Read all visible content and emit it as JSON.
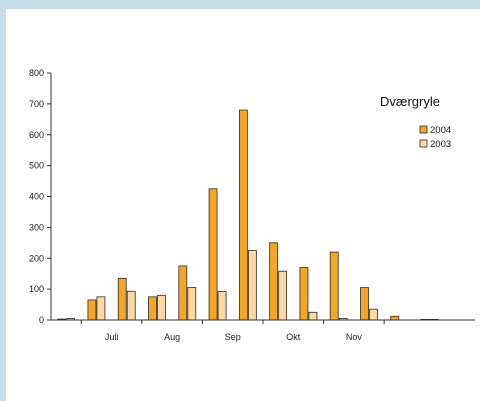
{
  "chart_data": {
    "type": "bar",
    "title": "Dværgryle",
    "xlabel": "",
    "ylabel": "",
    "ylim": [
      0,
      800
    ],
    "yticks": [
      0,
      100,
      200,
      300,
      400,
      500,
      600,
      700,
      800
    ],
    "month_labels": [
      "Juli",
      "Aug",
      "Sep",
      "Okt",
      "Nov"
    ],
    "grid": false,
    "legend_position": "right",
    "colors": {
      "2004": "#f5a623",
      "2003": "#fad9a4",
      "edge": "#2a2a2a"
    },
    "series": [
      {
        "name": "2004",
        "values": [
          3,
          65,
          135,
          75,
          175,
          425,
          680,
          250,
          170,
          220,
          105,
          12,
          2,
          0
        ]
      },
      {
        "name": "2003",
        "values": [
          5,
          75,
          93,
          80,
          105,
          92,
          225,
          158,
          25,
          5,
          35,
          0,
          2,
          0
        ]
      }
    ]
  }
}
